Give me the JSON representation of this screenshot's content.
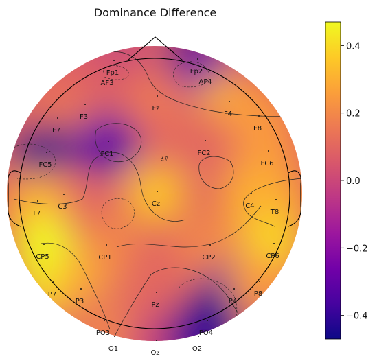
{
  "title": "Dominance Difference",
  "colormap": {
    "name": "plasma",
    "stops": [
      "#0d0887",
      "#46039f",
      "#7201a8",
      "#9c179e",
      "#bd3786",
      "#d8576b",
      "#ed7953",
      "#fb9f3a",
      "#fdca26",
      "#f0f921"
    ]
  },
  "colorbar": {
    "min": -0.47,
    "max": 0.47,
    "ticks": [
      {
        "value": 0.4,
        "label": "0.4"
      },
      {
        "value": 0.2,
        "label": "0.2"
      },
      {
        "value": 0.0,
        "label": "0.0"
      },
      {
        "value": -0.2,
        "label": "−0.2"
      },
      {
        "value": -0.4,
        "label": "−0.4"
      }
    ]
  },
  "center_marker": "d p",
  "electrodes": [
    {
      "label": "Fp1",
      "value": -0.15
    },
    {
      "label": "Fp2",
      "value": -0.47
    },
    {
      "label": "AF3",
      "value": 0.05
    },
    {
      "label": "AF4",
      "value": -0.25
    },
    {
      "label": "F3",
      "value": 0.1
    },
    {
      "label": "Fz",
      "value": 0.15
    },
    {
      "label": "F4",
      "value": 0.3
    },
    {
      "label": "F7",
      "value": 0.15
    },
    {
      "label": "F8",
      "value": 0.25
    },
    {
      "label": "FC1",
      "value": -0.3
    },
    {
      "label": "FC2",
      "value": 0.1
    },
    {
      "label": "FC5",
      "value": -0.45
    },
    {
      "label": "FC6",
      "value": 0.25
    },
    {
      "label": "C3",
      "value": 0.1
    },
    {
      "label": "Cz",
      "value": 0.35
    },
    {
      "label": "C4",
      "value": 0.3
    },
    {
      "label": "T7",
      "value": 0.3
    },
    {
      "label": "T8",
      "value": 0.3
    },
    {
      "label": "CP5",
      "value": 0.47
    },
    {
      "label": "CP1",
      "value": 0.2
    },
    {
      "label": "CP2",
      "value": 0.2
    },
    {
      "label": "CP6",
      "value": 0.4
    },
    {
      "label": "P7",
      "value": 0.45
    },
    {
      "label": "P3",
      "value": 0.3
    },
    {
      "label": "Pz",
      "value": 0.1
    },
    {
      "label": "P4",
      "value": -0.35
    },
    {
      "label": "P8",
      "value": 0.25
    },
    {
      "label": "PO3",
      "value": 0.1
    },
    {
      "label": "PO4",
      "value": -0.47
    },
    {
      "label": "O1",
      "value": 0.2
    },
    {
      "label": "Oz",
      "value": 0.0
    },
    {
      "label": "O2",
      "value": -0.4
    }
  ]
}
